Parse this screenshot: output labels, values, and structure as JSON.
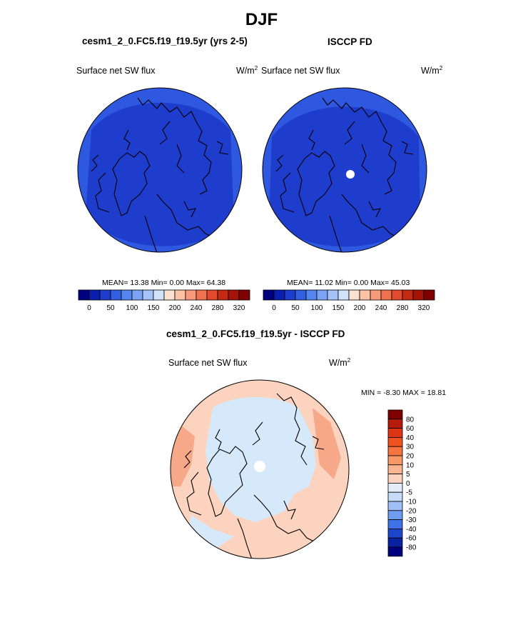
{
  "figure": {
    "title": "DJF",
    "top_left_title": "cesm1_2_0.FC5.f19_f19.5yr (yrs 2-5)",
    "top_right_title": "ISCCP FD",
    "bottom_title": "cesm1_2_0.FC5.f19_f19.5yr - ISCCP FD"
  },
  "panels": {
    "left": {
      "variable": "Surface net SW flux",
      "units": "W/m",
      "units_sup": "2",
      "stats": "MEAN=  13.38  Min=    0.00  Max=  64.38"
    },
    "right": {
      "variable": "Surface net SW flux",
      "units": "W/m",
      "units_sup": "2",
      "stats": "MEAN=  11.02  Min=    0.00  Max=  45.03"
    },
    "diff": {
      "variable": "Surface net SW flux",
      "units": "W/m",
      "units_sup": "2",
      "stats": "MIN =  -8.30 MAX =  18.81"
    }
  },
  "colors": {
    "field_main": "#1f3dcc",
    "field_rim": "#2e58e0",
    "coast": "#000000",
    "diff_neutral": "#d6e9fb",
    "diff_warm": "#fbd3bf",
    "diff_warmer": "#f6a888"
  },
  "chart_data": [
    {
      "type": "heatmap",
      "projection": "north-polar-stereographic",
      "title": "cesm1_2_0.FC5.f19_f19.5yr (yrs 2-5)",
      "variable": "Surface net SW flux",
      "mean": 13.38,
      "min": 0.0,
      "max": 64.38,
      "colorbar_ticks": [
        "0",
        "50",
        "100",
        "150",
        "200",
        "240",
        "280",
        "320"
      ],
      "colorbar_colors": [
        "#00007f",
        "#0a1fad",
        "#1f3dcc",
        "#3360e2",
        "#5585ee",
        "#7aa3f4",
        "#a5c3f8",
        "#d1e2fb",
        "#fbe1cf",
        "#fbc2a6",
        "#f7997a",
        "#f0714f",
        "#e14a2c",
        "#c42914",
        "#a51409",
        "#7f0000"
      ]
    },
    {
      "type": "heatmap",
      "projection": "north-polar-stereographic",
      "title": "ISCCP FD",
      "variable": "Surface net SW flux",
      "mean": 11.02,
      "min": 0.0,
      "max": 45.03,
      "colorbar_ticks": [
        "0",
        "50",
        "100",
        "150",
        "200",
        "240",
        "280",
        "320"
      ],
      "colorbar_colors": [
        "#00007f",
        "#0a1fad",
        "#1f3dcc",
        "#3360e2",
        "#5585ee",
        "#7aa3f4",
        "#a5c3f8",
        "#d1e2fb",
        "#fbe1cf",
        "#fbc2a6",
        "#f7997a",
        "#f0714f",
        "#e14a2c",
        "#c42914",
        "#a51409",
        "#7f0000"
      ]
    },
    {
      "type": "heatmap",
      "projection": "north-polar-stereographic",
      "title": "cesm1_2_0.FC5.f19_f19.5yr - ISCCP FD",
      "variable": "Surface net SW flux",
      "min": -8.3,
      "max": 18.81,
      "colorbar_ticks": [
        "80",
        "60",
        "40",
        "30",
        "20",
        "10",
        "5",
        "0",
        "-5",
        "-10",
        "-20",
        "-30",
        "-40",
        "-60",
        "-80"
      ],
      "colorbar_colors": [
        "#7f0000",
        "#b51b0b",
        "#db3515",
        "#f0521f",
        "#f5743f",
        "#f89868",
        "#fab690",
        "#fbd3bf",
        "#e3edf9",
        "#c6dcf8",
        "#9fc0f5",
        "#6f9cef",
        "#3f72e4",
        "#1d45c9",
        "#0b22a0",
        "#00007f"
      ]
    }
  ]
}
